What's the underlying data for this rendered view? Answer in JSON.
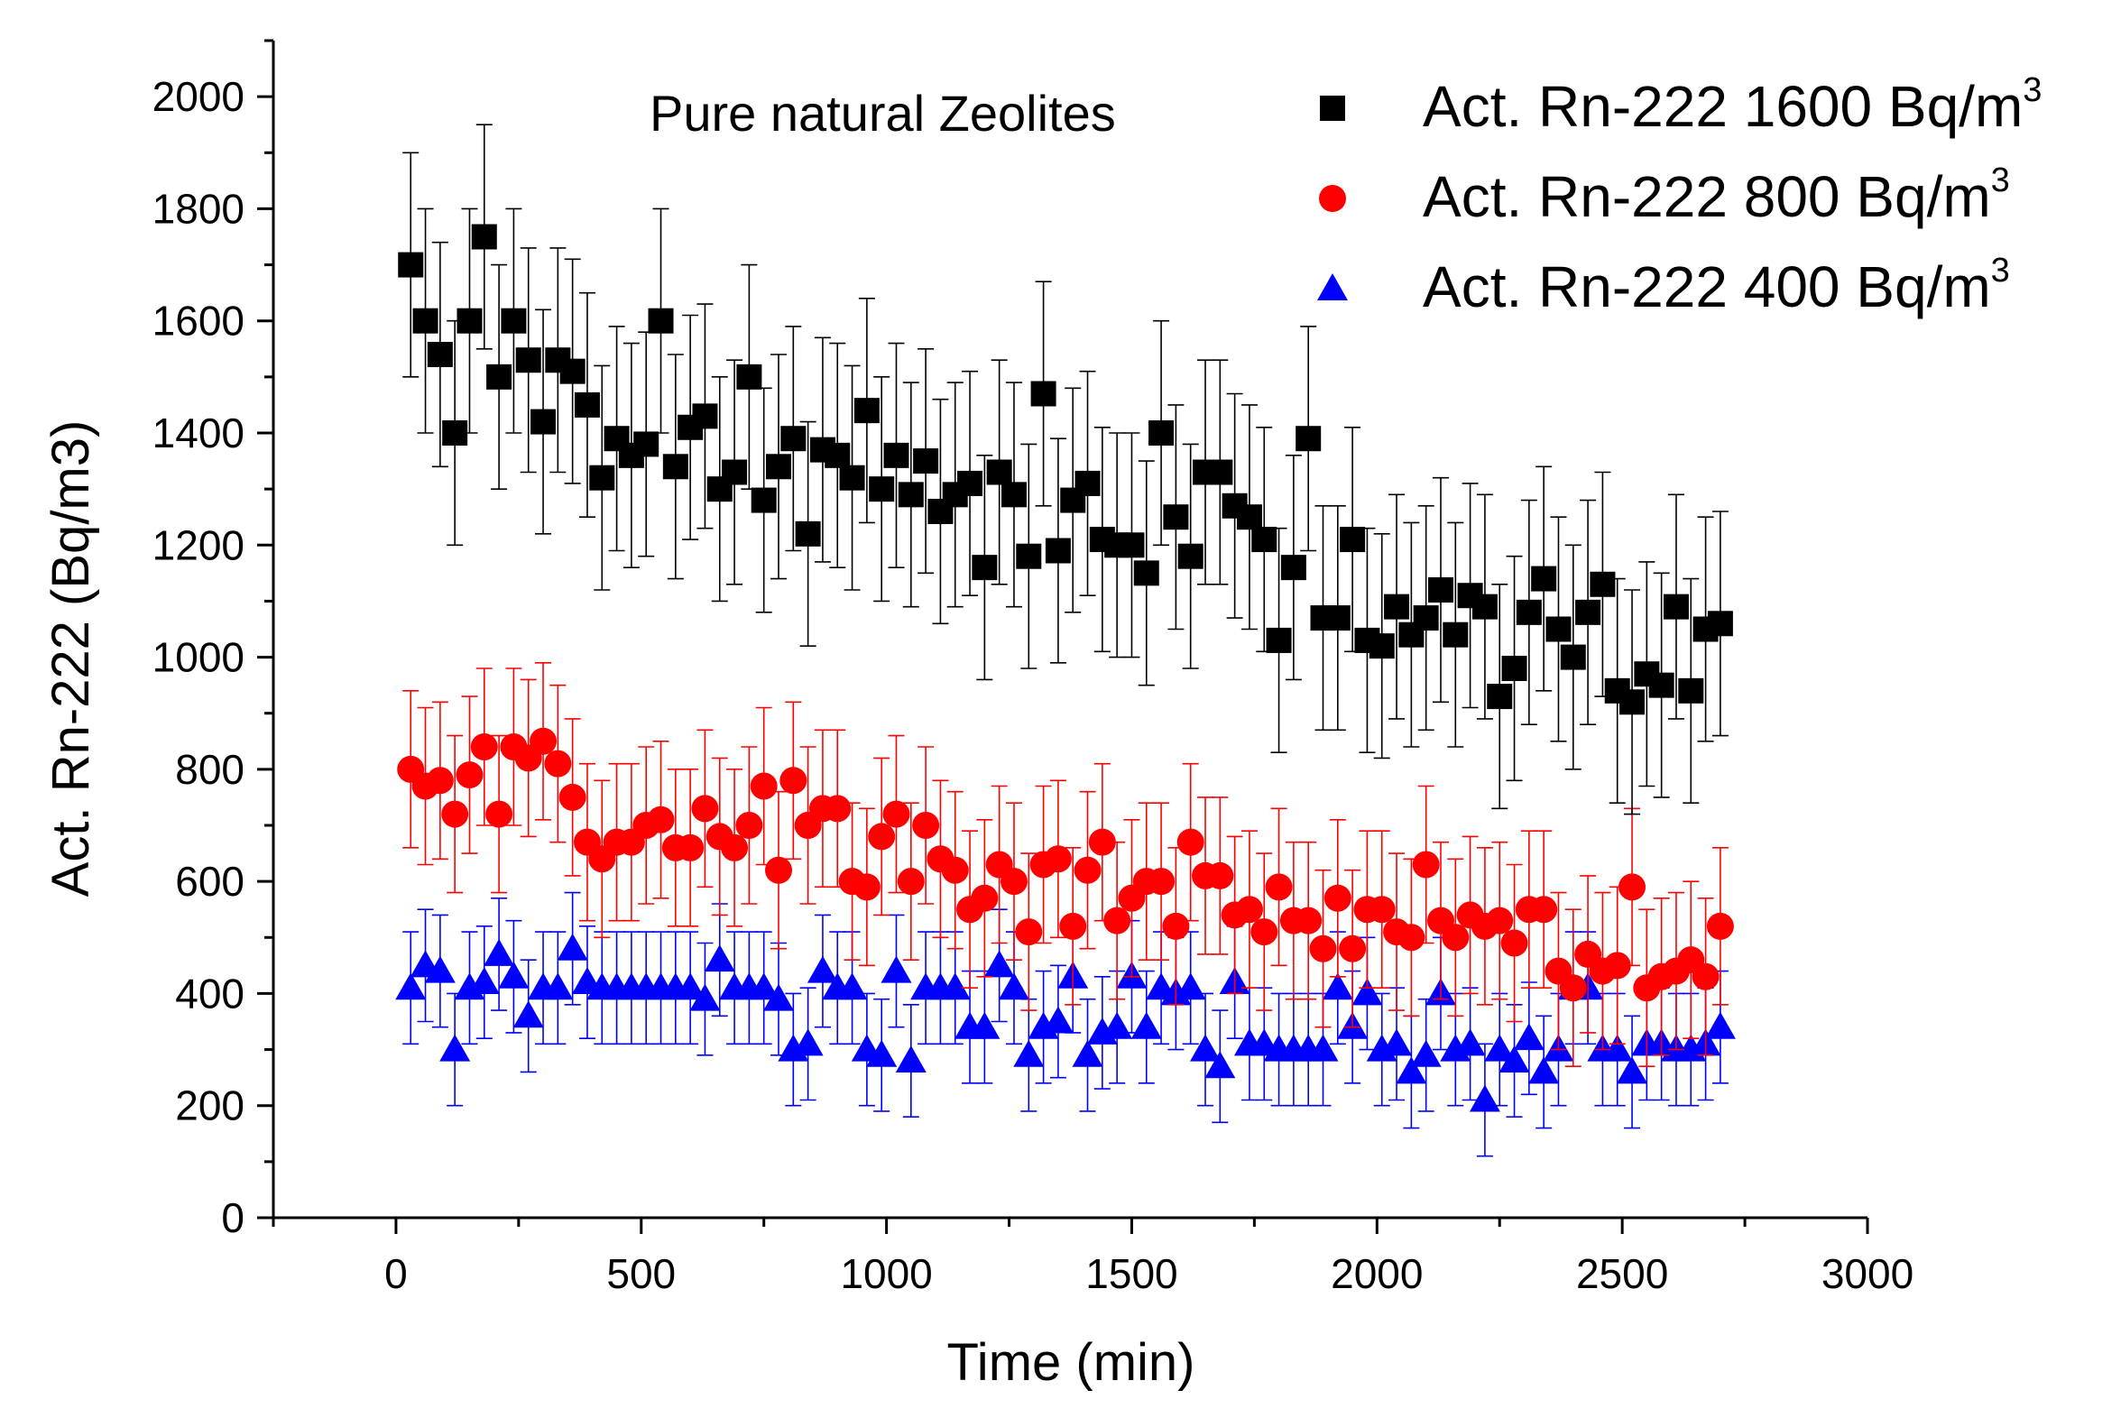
{
  "chart_data": {
    "type": "scatter",
    "title": "",
    "annotation": "Pure natural Zeolites",
    "xlabel": "Time (min)",
    "ylabel": "Act. Rn-222 (Bq/m3)",
    "xlim": [
      -250,
      3000
    ],
    "ylim": [
      0,
      2100
    ],
    "xticks": [
      0,
      500,
      1000,
      1500,
      2000,
      2500,
      3000
    ],
    "xtick_labels": [
      "0",
      "500",
      "1000",
      "1500",
      "2000",
      "2500",
      "3000"
    ],
    "yticks": [
      0,
      200,
      400,
      600,
      800,
      1000,
      1200,
      1400,
      1600,
      1800,
      2000
    ],
    "ytick_labels": [
      "0",
      "200",
      "400",
      "600",
      "800",
      "1000",
      "1200",
      "1400",
      "1600",
      "1800",
      "2000"
    ],
    "grid": false,
    "legend_position": "top-right",
    "x": [
      30,
      60,
      90,
      120,
      150,
      180,
      210,
      240,
      270,
      300,
      330,
      360,
      390,
      420,
      450,
      480,
      510,
      540,
      570,
      600,
      630,
      660,
      690,
      720,
      750,
      780,
      810,
      840,
      870,
      900,
      930,
      960,
      990,
      1020,
      1050,
      1080,
      1110,
      1140,
      1170,
      1200,
      1230,
      1260,
      1290,
      1320,
      1350,
      1380,
      1410,
      1440,
      1470,
      1500,
      1530,
      1560,
      1590,
      1620,
      1650,
      1680,
      1710,
      1740,
      1770,
      1800,
      1830,
      1860,
      1890,
      1920,
      1950,
      1980,
      2010,
      2040,
      2070,
      2100,
      2130,
      2160,
      2190,
      2220,
      2250,
      2280,
      2310,
      2340,
      2370,
      2400,
      2430,
      2460,
      2490,
      2520,
      2550,
      2580,
      2610,
      2640,
      2670,
      2700
    ],
    "series": [
      {
        "name": "Act. Rn-222 1600 Bq/m",
        "superscript": "3",
        "marker": "square",
        "color": "#000000",
        "errorbar": 200,
        "values": [
          1700,
          1600,
          1540,
          1400,
          1600,
          1750,
          1500,
          1600,
          1530,
          1420,
          1530,
          1510,
          1450,
          1320,
          1390,
          1360,
          1380,
          1600,
          1340,
          1410,
          1430,
          1300,
          1330,
          1500,
          1280,
          1340,
          1390,
          1220,
          1370,
          1360,
          1320,
          1440,
          1300,
          1360,
          1290,
          1350,
          1260,
          1290,
          1310,
          1160,
          1330,
          1290,
          1180,
          1470,
          1190,
          1280,
          1310,
          1210,
          1200,
          1200,
          1150,
          1400,
          1250,
          1180,
          1330,
          1330,
          1270,
          1250,
          1210,
          1030,
          1160,
          1390,
          1070,
          1070,
          1210,
          1030,
          1020,
          1090,
          1040,
          1070,
          1120,
          1040,
          1110,
          1090,
          930,
          980,
          1080,
          1140,
          1050,
          1000,
          1080,
          1130,
          940,
          920,
          970,
          950,
          1090,
          940,
          1050,
          1060
        ]
      },
      {
        "name": "Act. Rn-222 800 Bq/m",
        "superscript": "3",
        "marker": "circle",
        "color": "#ff0000",
        "errorbar": 140,
        "values": [
          800,
          770,
          780,
          720,
          790,
          840,
          720,
          840,
          820,
          850,
          810,
          750,
          670,
          640,
          670,
          670,
          700,
          710,
          660,
          660,
          730,
          680,
          660,
          700,
          770,
          620,
          780,
          700,
          730,
          730,
          600,
          590,
          680,
          720,
          600,
          700,
          640,
          620,
          550,
          570,
          630,
          600,
          510,
          630,
          640,
          520,
          620,
          670,
          530,
          570,
          600,
          600,
          520,
          670,
          610,
          610,
          540,
          550,
          510,
          590,
          530,
          530,
          480,
          570,
          480,
          550,
          550,
          510,
          500,
          630,
          530,
          500,
          540,
          520,
          530,
          490,
          550,
          550,
          440,
          410,
          470,
          440,
          450,
          590,
          410,
          430,
          440,
          460,
          430,
          520
        ]
      },
      {
        "name": "Act. Rn-222 400 Bq/m",
        "superscript": "3",
        "marker": "triangle",
        "color": "#0000ff",
        "errorbar": 100,
        "values": [
          410,
          450,
          440,
          300,
          410,
          420,
          470,
          430,
          360,
          410,
          410,
          480,
          420,
          410,
          410,
          410,
          410,
          410,
          410,
          410,
          390,
          460,
          410,
          410,
          410,
          390,
          300,
          310,
          440,
          410,
          410,
          300,
          290,
          440,
          280,
          410,
          410,
          410,
          340,
          340,
          450,
          410,
          290,
          340,
          350,
          430,
          290,
          330,
          340,
          430,
          340,
          410,
          400,
          410,
          300,
          270,
          420,
          310,
          310,
          300,
          300,
          300,
          300,
          410,
          340,
          400,
          300,
          310,
          260,
          290,
          400,
          300,
          310,
          210,
          300,
          280,
          320,
          260,
          300,
          410,
          410,
          300,
          300,
          260,
          310,
          310,
          300,
          300,
          310,
          340
        ]
      }
    ]
  }
}
